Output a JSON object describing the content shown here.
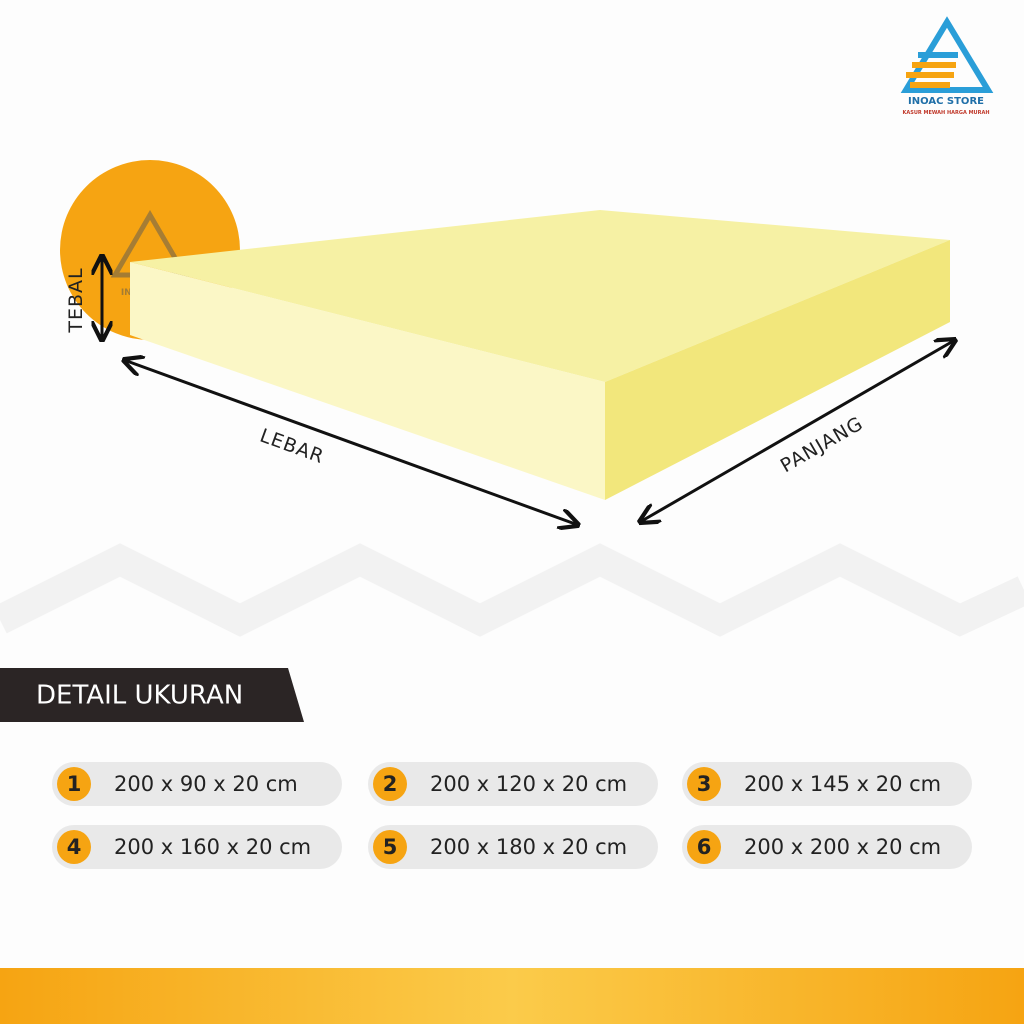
{
  "brand": {
    "name": "INOAC STORE",
    "tagline": "KASUR MEWAH HARGA MURAH"
  },
  "dimensions": {
    "thickness": "TEBAL",
    "width": "LEBAR",
    "length": "PANJANG"
  },
  "section": {
    "title": "DETAIL UKURAN"
  },
  "sizes": [
    {
      "number": 1,
      "size": "200 x 90 x 20 cm"
    },
    {
      "number": 2,
      "size": "200 x 120 x 20 cm"
    },
    {
      "number": 3,
      "size": "200 x 145 x 20 cm"
    },
    {
      "number": 4,
      "size": "200 x 160 x 20 cm"
    },
    {
      "number": 5,
      "size": "200 x 180 x 20 cm"
    },
    {
      "number": 6,
      "size": "200 x 200 x 20 cm"
    }
  ]
}
